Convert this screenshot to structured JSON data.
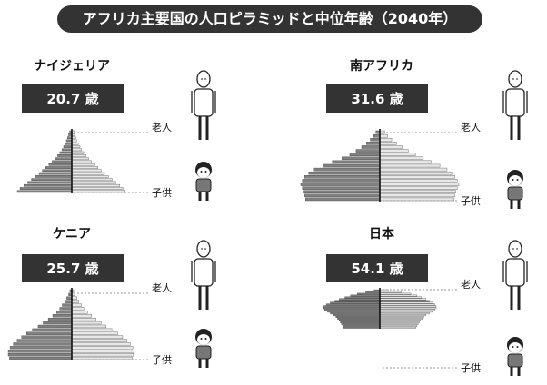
{
  "title": "アフリカ主要国の人口ピラミッドと中位年齢（2040年）",
  "labels": {
    "elderly": "老人",
    "children": "子供"
  },
  "colors": {
    "bar": "#333333",
    "male": "#808080",
    "female": "#e8e8e8",
    "dots": "#9a9a9a"
  },
  "icons": [
    "elderly-person-icon",
    "child-icon"
  ],
  "chart_data": [
    {
      "type": "bar",
      "country": "ナイジェリア",
      "median_age": "20.7 歳",
      "male": [
        0.04,
        0.06,
        0.08,
        0.1,
        0.12,
        0.15,
        0.18,
        0.22,
        0.26,
        0.31,
        0.36,
        0.42,
        0.48,
        0.54,
        0.6,
        0.67,
        0.74,
        0.81,
        0.88,
        0.95,
        1.0
      ],
      "female": [
        0.04,
        0.05,
        0.07,
        0.09,
        0.12,
        0.15,
        0.18,
        0.22,
        0.26,
        0.31,
        0.36,
        0.42,
        0.48,
        0.54,
        0.6,
        0.67,
        0.74,
        0.81,
        0.88,
        0.94,
        0.98
      ]
    },
    {
      "type": "bar",
      "country": "南アフリカ",
      "median_age": "31.6 歳",
      "male": [
        0.05,
        0.08,
        0.12,
        0.17,
        0.23,
        0.3,
        0.38,
        0.48,
        0.6,
        0.72,
        0.83,
        0.9,
        0.95,
        0.98,
        1.0,
        0.98,
        0.96,
        0.95,
        0.94
      ],
      "female": [
        0.06,
        0.1,
        0.15,
        0.21,
        0.28,
        0.36,
        0.45,
        0.55,
        0.65,
        0.76,
        0.85,
        0.91,
        0.95,
        0.98,
        1.0,
        0.98,
        0.96,
        0.95,
        0.94
      ]
    },
    {
      "type": "bar",
      "country": "ケニア",
      "median_age": "25.7 歳",
      "male": [
        0.03,
        0.05,
        0.08,
        0.11,
        0.15,
        0.19,
        0.24,
        0.3,
        0.37,
        0.45,
        0.53,
        0.62,
        0.71,
        0.79,
        0.86,
        0.92,
        0.97,
        1.0,
        1.0,
        0.98
      ],
      "female": [
        0.03,
        0.05,
        0.08,
        0.11,
        0.15,
        0.19,
        0.25,
        0.31,
        0.38,
        0.46,
        0.54,
        0.63,
        0.72,
        0.8,
        0.87,
        0.92,
        0.96,
        0.98,
        0.97,
        0.95
      ]
    },
    {
      "type": "bar",
      "country": "日本",
      "median_age": "54.1 歳",
      "male": [
        0.1,
        0.25,
        0.4,
        0.52,
        0.62,
        0.72,
        0.8,
        0.88,
        0.95,
        1.0,
        1.0,
        0.98,
        0.93,
        0.88,
        0.82,
        0.78,
        0.75,
        0.72,
        0.7,
        0.68,
        0.66,
        0.64
      ],
      "female": [
        0.15,
        0.38,
        0.55,
        0.66,
        0.74,
        0.82,
        0.88,
        0.94,
        0.98,
        1.0,
        1.0,
        0.98,
        0.93,
        0.88,
        0.82,
        0.78,
        0.75,
        0.72,
        0.7,
        0.68,
        0.66,
        0.64
      ]
    }
  ]
}
